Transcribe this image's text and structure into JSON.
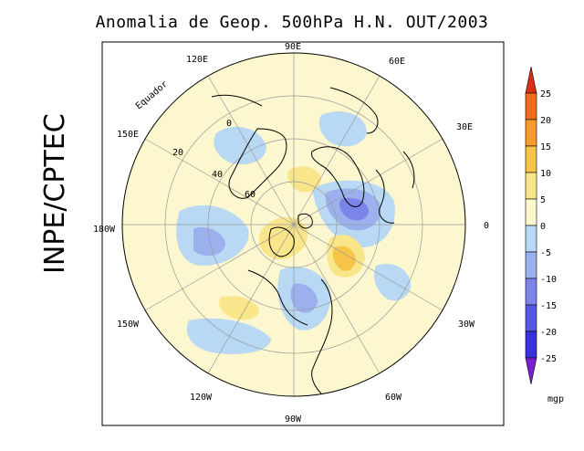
{
  "title": "Anomalia de Geop. 500hPa H.N. OUT/2003",
  "credit": "INPE/CPTEC",
  "units": "mgp",
  "map": {
    "projection": "north-polar-stereographic",
    "hemisphere": "N",
    "equator_label": "Equador",
    "longitude_labels": [
      "90E",
      "60E",
      "30E",
      "0",
      "30W",
      "60W",
      "90W",
      "120W",
      "150W",
      "180W",
      "150E",
      "120E"
    ],
    "latitude_labels": [
      "0",
      "20",
      "40",
      "60"
    ]
  },
  "colorbar": {
    "levels": [
      "25",
      "20",
      "15",
      "10",
      "5",
      "0",
      "-5",
      "-10",
      "-15",
      "-20",
      "-25"
    ],
    "colors": [
      "#d93015",
      "#f06a1f",
      "#f59a2e",
      "#f6c548",
      "#f9e58a",
      "#fdf7cf",
      "#b8d8f4",
      "#9cb0ee",
      "#7c84ea",
      "#5658e4",
      "#3a30dc",
      "#7a1fd0"
    ]
  }
}
